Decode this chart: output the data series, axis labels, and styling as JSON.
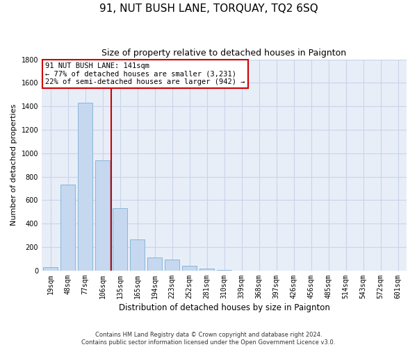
{
  "title": "91, NUT BUSH LANE, TORQUAY, TQ2 6SQ",
  "subtitle": "Size of property relative to detached houses in Paignton",
  "xlabel": "Distribution of detached houses by size in Paignton",
  "ylabel": "Number of detached properties",
  "categories": [
    "19sqm",
    "48sqm",
    "77sqm",
    "106sqm",
    "135sqm",
    "165sqm",
    "194sqm",
    "223sqm",
    "252sqm",
    "281sqm",
    "310sqm",
    "339sqm",
    "368sqm",
    "397sqm",
    "426sqm",
    "456sqm",
    "485sqm",
    "514sqm",
    "543sqm",
    "572sqm",
    "601sqm"
  ],
  "values": [
    30,
    730,
    1430,
    940,
    530,
    265,
    110,
    95,
    40,
    20,
    8,
    2,
    1,
    0,
    0,
    0,
    0,
    0,
    0,
    0,
    0
  ],
  "bar_color": "#c5d8ef",
  "bar_edge_color": "#7aafd4",
  "vline_color": "#cc0000",
  "vline_x": 3.5,
  "annotation_text_line1": "91 NUT BUSH LANE: 141sqm",
  "annotation_text_line2": "← 77% of detached houses are smaller (3,231)",
  "annotation_text_line3": "22% of semi-detached houses are larger (942) →",
  "annotation_box_facecolor": "#ffffff",
  "annotation_box_edgecolor": "#cc0000",
  "ylim": [
    0,
    1800
  ],
  "yticks": [
    0,
    200,
    400,
    600,
    800,
    1000,
    1200,
    1400,
    1600,
    1800
  ],
  "grid_color": "#c8d4e8",
  "plot_bg_color": "#e8eef8",
  "fig_bg_color": "#ffffff",
  "footer_line1": "Contains HM Land Registry data © Crown copyright and database right 2024.",
  "footer_line2": "Contains public sector information licensed under the Open Government Licence v3.0.",
  "title_fontsize": 11,
  "subtitle_fontsize": 9,
  "xlabel_fontsize": 8.5,
  "ylabel_fontsize": 8,
  "tick_fontsize": 7,
  "annot_fontsize": 7.5,
  "footer_fontsize": 6
}
